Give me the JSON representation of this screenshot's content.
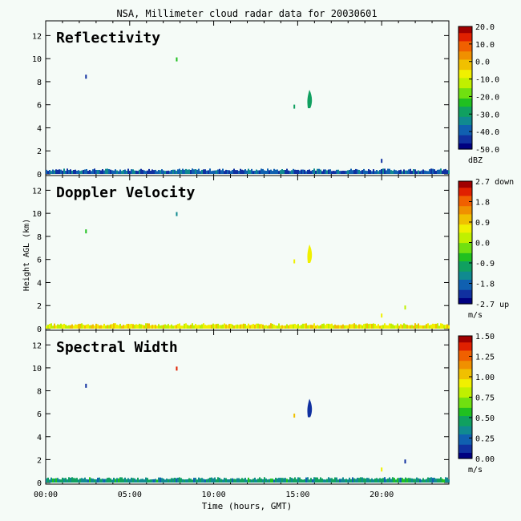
{
  "title": "NSA, Millimeter cloud radar data for 20030601",
  "colors": {
    "background": "#f5fbf7"
  },
  "chart_data": [
    {
      "type": "heatmap",
      "title": "Reflectivity",
      "ylabel": "",
      "ylim": [
        0,
        13
      ],
      "yticks": [
        "0",
        "2",
        "4",
        "6",
        "8",
        "10",
        "12"
      ],
      "colorbar": {
        "ticks": [
          "20.0",
          "10.0",
          "0.0",
          "-10.0",
          "-20.0",
          "-30.0",
          "-40.0",
          "-50.0"
        ],
        "unit": "dBZ",
        "range": [
          -50,
          20
        ]
      },
      "features": [
        {
          "kind": "surface_layer",
          "t_start": 0.0,
          "t_end": 24.0,
          "h_top": 0.45,
          "level": -40
        },
        {
          "kind": "cloud",
          "t": 15.7,
          "h_bottom": 5.7,
          "h_top": 7.3,
          "level": -30
        },
        {
          "kind": "speck",
          "t": 14.8,
          "h": 5.8,
          "level": -30
        },
        {
          "kind": "speck",
          "t": 2.4,
          "h": 8.4,
          "level": -45
        },
        {
          "kind": "speck",
          "t": 7.8,
          "h": 9.9,
          "level": -25
        },
        {
          "kind": "speck",
          "t": 20.0,
          "h": 1.1,
          "level": -45
        }
      ]
    },
    {
      "type": "heatmap",
      "title": "Doppler Velocity",
      "ylabel": "Height AGL (km)",
      "ylim": [
        0,
        13
      ],
      "yticks": [
        "0",
        "2",
        "4",
        "6",
        "8",
        "10",
        "12"
      ],
      "colorbar": {
        "ticks": [
          "2.7 down",
          "1.8",
          "0.9",
          "0.0",
          "-0.9",
          "-1.8",
          "-2.7 up"
        ],
        "unit": "m/s",
        "range": [
          -2.7,
          2.7
        ]
      },
      "features": [
        {
          "kind": "surface_layer",
          "t_start": 0.0,
          "t_end": 24.0,
          "h_top": 0.45,
          "level": 0.6
        },
        {
          "kind": "cloud",
          "t": 15.7,
          "h_bottom": 5.7,
          "h_top": 7.3,
          "level": 0.7
        },
        {
          "kind": "speck",
          "t": 14.8,
          "h": 5.8,
          "level": 0.5
        },
        {
          "kind": "speck",
          "t": 2.4,
          "h": 8.4,
          "level": -0.5
        },
        {
          "kind": "speck",
          "t": 7.8,
          "h": 9.9,
          "level": -1.5
        },
        {
          "kind": "speck",
          "t": 20.0,
          "h": 1.1,
          "level": 0.8
        },
        {
          "kind": "speck",
          "t": 21.4,
          "h": 1.8,
          "level": 0.4
        }
      ]
    },
    {
      "type": "heatmap",
      "title": "Spectral Width",
      "ylabel": "",
      "xlabel": "Time (hours, GMT)",
      "ylim": [
        0,
        13
      ],
      "yticks": [
        "0",
        "2",
        "4",
        "6",
        "8",
        "10",
        "12"
      ],
      "xticks": [
        "00:00",
        "05:00",
        "10:00",
        "15:00",
        "20:00"
      ],
      "xlim": [
        0,
        24
      ],
      "colorbar": {
        "ticks": [
          "1.50",
          "1.25",
          "1.00",
          "0.75",
          "0.50",
          "0.25",
          "0.00"
        ],
        "unit": "m/s",
        "range": [
          0,
          1.5
        ]
      },
      "features": [
        {
          "kind": "surface_layer",
          "t_start": 0.0,
          "t_end": 24.0,
          "h_top": 0.45,
          "level": 0.4
        },
        {
          "kind": "cloud",
          "t": 15.7,
          "h_bottom": 5.7,
          "h_top": 7.3,
          "level": 0.15
        },
        {
          "kind": "speck",
          "t": 14.8,
          "h": 5.8,
          "level": 1.05
        },
        {
          "kind": "speck",
          "t": 2.4,
          "h": 8.4,
          "level": 0.1
        },
        {
          "kind": "speck",
          "t": 7.8,
          "h": 9.9,
          "level": 1.4
        },
        {
          "kind": "speck",
          "t": 20.0,
          "h": 1.1,
          "level": 0.9
        },
        {
          "kind": "speck",
          "t": 21.4,
          "h": 1.8,
          "level": 0.1
        }
      ]
    }
  ]
}
